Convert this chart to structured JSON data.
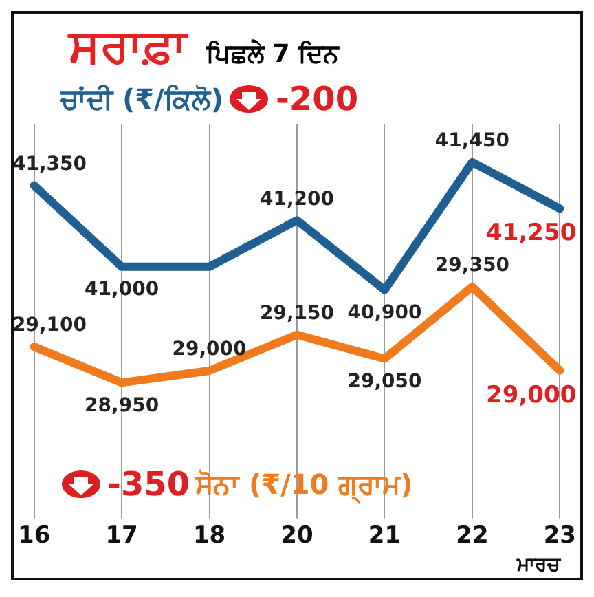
{
  "chart_data": {
    "type": "line",
    "title": "ਸਰਾਫ਼ਾ",
    "subtitle": "ਪਿਛਲੇ 7 ਦਿਨ",
    "xlabel": "ਮਾਰਚ",
    "categories": [
      "16",
      "17",
      "18",
      "20",
      "21",
      "22",
      "23"
    ],
    "series": [
      {
        "name": "ਚਾਂਦੀ (₹/ਕਿਲੋ)",
        "color": "#1f5f91",
        "values": [
          41350,
          41000,
          41000,
          41200,
          40900,
          41450,
          41250
        ],
        "value_labels": [
          "41,350",
          "41,000",
          null,
          "41,200",
          "40,900",
          "41,450",
          "41,250"
        ]
      },
      {
        "name": "ਸੋਨਾ (₹/10 ਗ੍ਰਾਮ)",
        "color": "#f07a1e",
        "axis": "y2",
        "values": [
          29100,
          28950,
          29000,
          29150,
          29050,
          29350,
          29000
        ],
        "value_labels": [
          "29,100",
          "28,950",
          "29,000",
          "29,150",
          "29,050",
          "29,350",
          "29,000"
        ]
      }
    ],
    "annotations": [
      "-200",
      "-350"
    ],
    "grid": "x",
    "marker": "none",
    "legend": false,
    "tick_labels": "x"
  }
}
